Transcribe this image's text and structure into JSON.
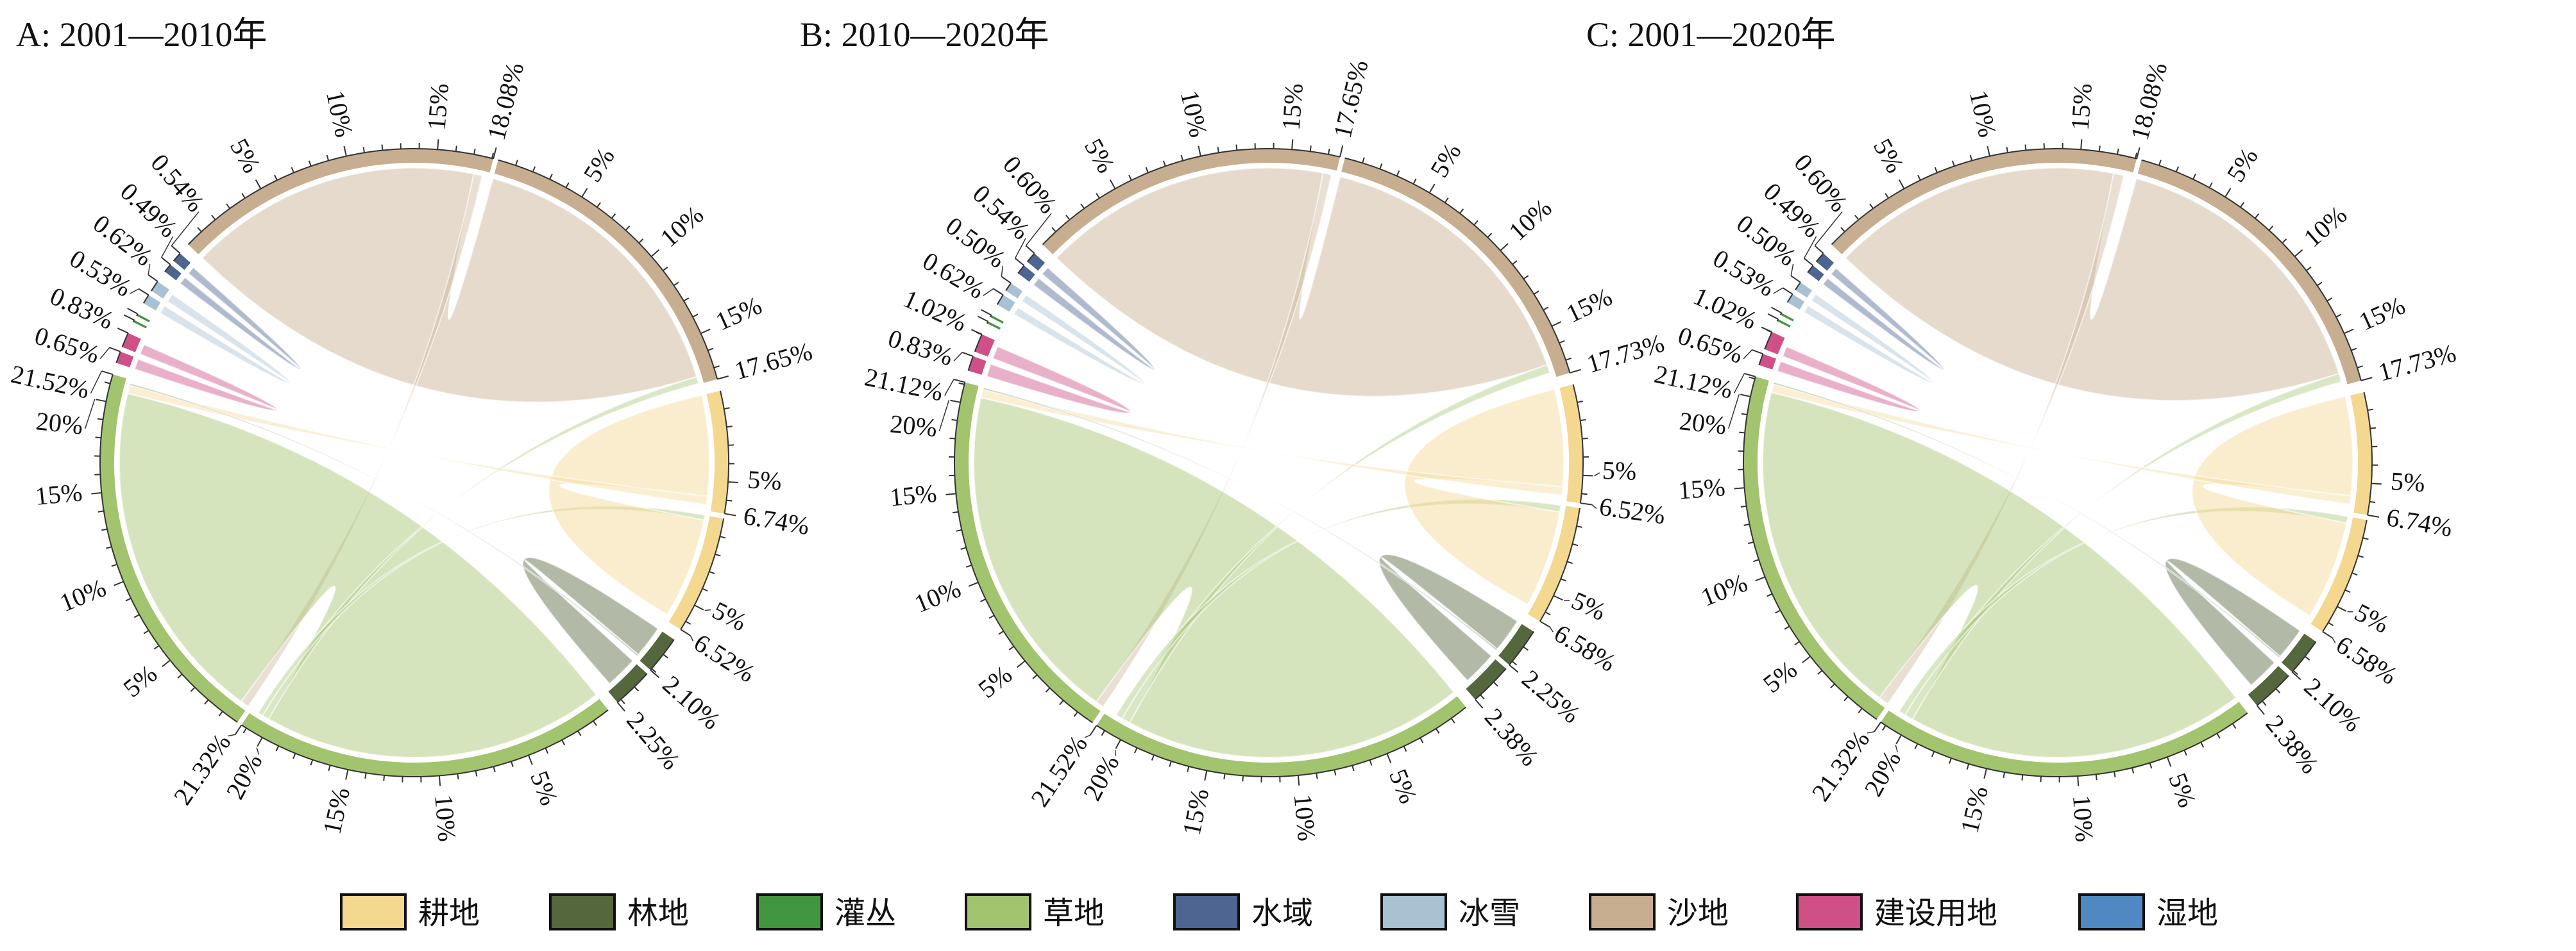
{
  "legend": [
    {
      "label": "耕地",
      "color": "#f4d890"
    },
    {
      "label": "林地",
      "color": "#55673c"
    },
    {
      "label": "灌丛",
      "color": "#42953f"
    },
    {
      "label": "草地",
      "color": "#a3c46e"
    },
    {
      "label": "水域",
      "color": "#4e6592"
    },
    {
      "label": "冰雪",
      "color": "#a9c2d3"
    },
    {
      "label": "沙地",
      "color": "#c8ae90"
    },
    {
      "label": "建设用地",
      "color": "#cf5087"
    },
    {
      "label": "湿地",
      "color": "#5089c2"
    }
  ],
  "chart_data": [
    {
      "type": "chord",
      "title": "A: 2001—2010年",
      "unit": "%",
      "tick_labels": [
        "5%",
        "10%",
        "15%",
        "20%"
      ],
      "sectors": [
        {
          "name": "沙地",
          "values": [
            18.08,
            17.65
          ],
          "show_labels": true
        },
        {
          "name": "耕地",
          "values": [
            6.74,
            6.52
          ],
          "show_labels": true
        },
        {
          "name": "林地",
          "values": [
            2.1,
            2.25
          ],
          "show_labels": true
        },
        {
          "name": "草地",
          "values": [
            21.32,
            21.52
          ],
          "show_labels": true
        },
        {
          "name": "建设用地",
          "values": [
            0.65,
            0.83
          ],
          "show_labels": true
        },
        {
          "name": "灌丛",
          "values": [
            0.12,
            0.12
          ],
          "show_labels": false
        },
        {
          "name": "冰雪",
          "values": [
            0.53,
            0.62
          ],
          "show_labels": true
        },
        {
          "name": "水域",
          "values": [
            0.49,
            0.54
          ],
          "show_labels": true
        }
      ],
      "links": [
        {
          "from": "沙地",
          "to": "沙地",
          "value": 17.2
        },
        {
          "from": "沙地",
          "to": "草地",
          "value": 0.5
        },
        {
          "from": "草地",
          "to": "草地",
          "value": 20.2
        },
        {
          "from": "草地",
          "to": "沙地",
          "value": 0.4
        },
        {
          "from": "草地",
          "to": "耕地",
          "value": 0.3
        },
        {
          "from": "耕地",
          "to": "耕地",
          "value": 5.9
        },
        {
          "from": "耕地",
          "to": "草地",
          "value": 0.5
        },
        {
          "from": "林地",
          "to": "林地",
          "value": 1.9
        },
        {
          "from": "林地",
          "to": "草地",
          "value": 0.1
        },
        {
          "from": "建设用地",
          "to": "建设用地",
          "value": 0.6
        },
        {
          "from": "冰雪",
          "to": "冰雪",
          "value": 0.5
        },
        {
          "from": "水域",
          "to": "水域",
          "value": 0.45
        }
      ]
    },
    {
      "type": "chord",
      "title": "B: 2010—2020年",
      "unit": "%",
      "tick_labels": [
        "5%",
        "10%",
        "15%",
        "20%"
      ],
      "sectors": [
        {
          "name": "沙地",
          "values": [
            17.65,
            17.73
          ],
          "show_labels": true
        },
        {
          "name": "耕地",
          "values": [
            6.52,
            6.58
          ],
          "show_labels": true
        },
        {
          "name": "林地",
          "values": [
            2.25,
            2.38
          ],
          "show_labels": true
        },
        {
          "name": "草地",
          "values": [
            21.52,
            21.12
          ],
          "show_labels": true
        },
        {
          "name": "建设用地",
          "values": [
            0.83,
            1.02
          ],
          "show_labels": true
        },
        {
          "name": "灌丛",
          "values": [
            0.12,
            0.12
          ],
          "show_labels": false
        },
        {
          "name": "冰雪",
          "values": [
            0.62,
            0.5
          ],
          "show_labels": true
        },
        {
          "name": "水域",
          "values": [
            0.54,
            0.6
          ],
          "show_labels": true
        }
      ],
      "links": [
        {
          "from": "沙地",
          "to": "沙地",
          "value": 16.9
        },
        {
          "from": "沙地",
          "to": "草地",
          "value": 0.5
        },
        {
          "from": "草地",
          "to": "草地",
          "value": 20.0
        },
        {
          "from": "草地",
          "to": "沙地",
          "value": 0.5
        },
        {
          "from": "草地",
          "to": "耕地",
          "value": 0.4
        },
        {
          "from": "耕地",
          "to": "耕地",
          "value": 5.7
        },
        {
          "from": "耕地",
          "to": "草地",
          "value": 0.5
        },
        {
          "from": "林地",
          "to": "林地",
          "value": 2.0
        },
        {
          "from": "林地",
          "to": "草地",
          "value": 0.1
        },
        {
          "from": "建设用地",
          "to": "建设用地",
          "value": 0.75
        },
        {
          "from": "冰雪",
          "to": "冰雪",
          "value": 0.45
        },
        {
          "from": "水域",
          "to": "水域",
          "value": 0.5
        }
      ]
    },
    {
      "type": "chord",
      "title": "C: 2001—2020年",
      "unit": "%",
      "tick_labels": [
        "5%",
        "10%",
        "15%",
        "20%"
      ],
      "sectors": [
        {
          "name": "沙地",
          "values": [
            18.08,
            17.73
          ],
          "show_labels": true
        },
        {
          "name": "耕地",
          "values": [
            6.74,
            6.58
          ],
          "show_labels": true
        },
        {
          "name": "林地",
          "values": [
            2.1,
            2.38
          ],
          "show_labels": true
        },
        {
          "name": "草地",
          "values": [
            21.32,
            21.12
          ],
          "show_labels": true
        },
        {
          "name": "建设用地",
          "values": [
            0.65,
            1.02
          ],
          "show_labels": true
        },
        {
          "name": "灌丛",
          "values": [
            0.12,
            0.12
          ],
          "show_labels": false
        },
        {
          "name": "冰雪",
          "values": [
            0.53,
            0.5
          ],
          "show_labels": true
        },
        {
          "name": "水域",
          "values": [
            0.49,
            0.6
          ],
          "show_labels": true
        }
      ],
      "links": [
        {
          "from": "沙地",
          "to": "沙地",
          "value": 17.0
        },
        {
          "from": "沙地",
          "to": "草地",
          "value": 0.6
        },
        {
          "from": "草地",
          "to": "草地",
          "value": 19.9
        },
        {
          "from": "草地",
          "to": "沙地",
          "value": 0.5
        },
        {
          "from": "草地",
          "to": "耕地",
          "value": 0.4
        },
        {
          "from": "耕地",
          "to": "耕地",
          "value": 5.8
        },
        {
          "from": "耕地",
          "to": "草地",
          "value": 0.5
        },
        {
          "from": "林地",
          "to": "林地",
          "value": 1.9
        },
        {
          "from": "林地",
          "to": "草地",
          "value": 0.1
        },
        {
          "from": "建设用地",
          "to": "建设用地",
          "value": 0.6
        },
        {
          "from": "冰雪",
          "to": "冰雪",
          "value": 0.45
        },
        {
          "from": "水域",
          "to": "水域",
          "value": 0.45
        }
      ]
    }
  ]
}
